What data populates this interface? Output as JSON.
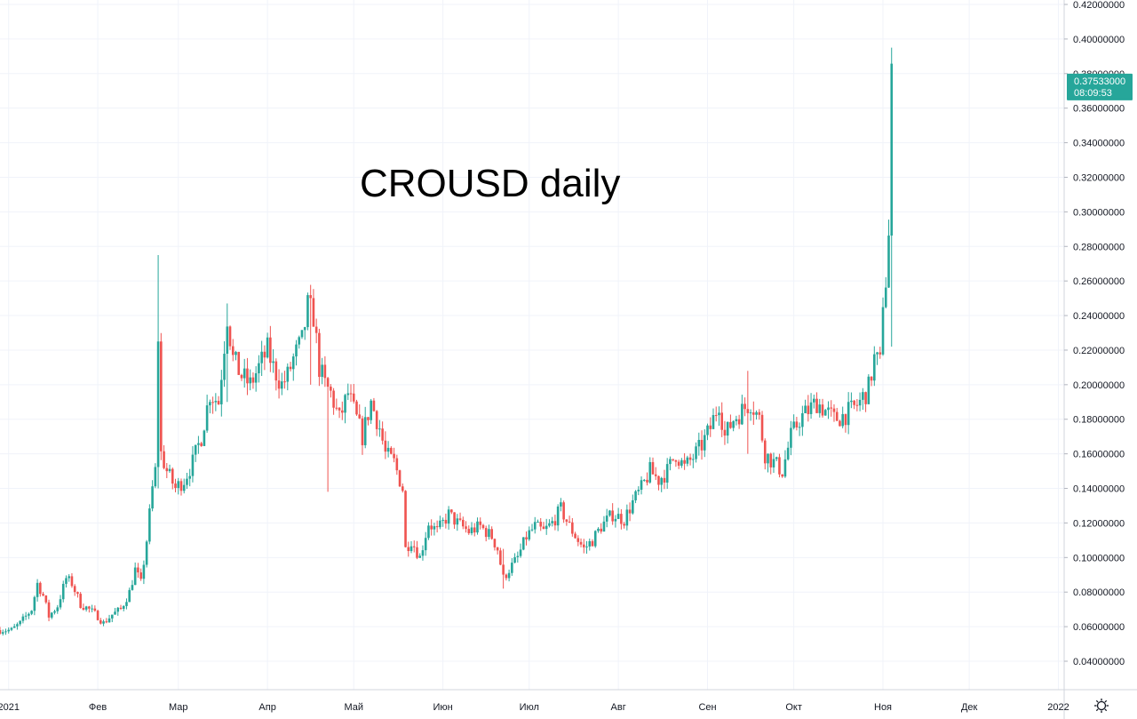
{
  "chart_data": {
    "type": "candlestick",
    "title": "CROUSD daily",
    "price_axis": {
      "ticks": [
        "0.04000000",
        "0.06000000",
        "0.08000000",
        "0.10000000",
        "0.12000000",
        "0.14000000",
        "0.16000000",
        "0.18000000",
        "0.20000000",
        "0.22000000",
        "0.24000000",
        "0.26000000",
        "0.28000000",
        "0.30000000",
        "0.32000000",
        "0.34000000",
        "0.36000000",
        "0.38000000",
        "0.40000000",
        "0.42000000"
      ],
      "range": [
        0.03,
        0.42
      ],
      "side": "right"
    },
    "time_axis": {
      "ticks": [
        {
          "label": "2021",
          "date": "2021-01-01"
        },
        {
          "label": "Фев",
          "date": "2021-02-01"
        },
        {
          "label": "Мар",
          "date": "2021-03-01"
        },
        {
          "label": "Апр",
          "date": "2021-04-01"
        },
        {
          "label": "Май",
          "date": "2021-05-01"
        },
        {
          "label": "Июн",
          "date": "2021-06-01"
        },
        {
          "label": "Июл",
          "date": "2021-07-01"
        },
        {
          "label": "Авг",
          "date": "2021-08-01"
        },
        {
          "label": "Сен",
          "date": "2021-09-01"
        },
        {
          "label": "Окт",
          "date": "2021-10-01"
        },
        {
          "label": "Ноя",
          "date": "2021-11-01"
        },
        {
          "label": "Дек",
          "date": "2021-12-01"
        },
        {
          "label": "2022",
          "date": "2022-01-01"
        }
      ],
      "range": [
        "2020-12-29",
        "2022-01-03"
      ]
    },
    "grid": true,
    "last_price": {
      "value": "0.37533000",
      "countdown": "08:09:53",
      "price": 0.37533
    },
    "colors": {
      "up": "#26a69a",
      "down": "#ef5350",
      "grid": "#f0f3fa",
      "label_bg": "#26a69a"
    },
    "close_path": [
      [
        "2020-12-29",
        0.058
      ],
      [
        "2021-01-02",
        0.058
      ],
      [
        "2021-01-05",
        0.062
      ],
      [
        "2021-01-09",
        0.07
      ],
      [
        "2021-01-11",
        0.085
      ],
      [
        "2021-01-13",
        0.078
      ],
      [
        "2021-01-15",
        0.066
      ],
      [
        "2021-01-18",
        0.072
      ],
      [
        "2021-01-21",
        0.088
      ],
      [
        "2021-01-23",
        0.085
      ],
      [
        "2021-01-26",
        0.073
      ],
      [
        "2021-01-29",
        0.07
      ],
      [
        "2021-02-01",
        0.066
      ],
      [
        "2021-02-03",
        0.062
      ],
      [
        "2021-02-06",
        0.067
      ],
      [
        "2021-02-09",
        0.07
      ],
      [
        "2021-02-12",
        0.08
      ],
      [
        "2021-02-14",
        0.093
      ],
      [
        "2021-02-16",
        0.085
      ],
      [
        "2021-02-18",
        0.11
      ],
      [
        "2021-02-20",
        0.14
      ],
      [
        "2021-02-21",
        0.15
      ],
      [
        "2021-02-22",
        0.228
      ],
      [
        "2021-02-23",
        0.16
      ],
      [
        "2021-02-25",
        0.15
      ],
      [
        "2021-02-28",
        0.14
      ],
      [
        "2021-03-03",
        0.145
      ],
      [
        "2021-03-06",
        0.155
      ],
      [
        "2021-03-09",
        0.17
      ],
      [
        "2021-03-12",
        0.195
      ],
      [
        "2021-03-15",
        0.19
      ],
      [
        "2021-03-18",
        0.24
      ],
      [
        "2021-03-20",
        0.215
      ],
      [
        "2021-03-23",
        0.205
      ],
      [
        "2021-03-26",
        0.2
      ],
      [
        "2021-03-29",
        0.21
      ],
      [
        "2021-04-01",
        0.22
      ],
      [
        "2021-04-03",
        0.21
      ],
      [
        "2021-04-06",
        0.2
      ],
      [
        "2021-04-08",
        0.205
      ],
      [
        "2021-04-10",
        0.215
      ],
      [
        "2021-04-13",
        0.225
      ],
      [
        "2021-04-15",
        0.245
      ],
      [
        "2021-04-17",
        0.24
      ],
      [
        "2021-04-19",
        0.21
      ],
      [
        "2021-04-21",
        0.2
      ],
      [
        "2021-04-23",
        0.195
      ],
      [
        "2021-04-26",
        0.18
      ],
      [
        "2021-04-29",
        0.195
      ],
      [
        "2021-05-01",
        0.185
      ],
      [
        "2021-05-04",
        0.17
      ],
      [
        "2021-05-07",
        0.19
      ],
      [
        "2021-05-10",
        0.175
      ],
      [
        "2021-05-12",
        0.16
      ],
      [
        "2021-05-15",
        0.155
      ],
      [
        "2021-05-18",
        0.14
      ],
      [
        "2021-05-19",
        0.105
      ],
      [
        "2021-05-21",
        0.11
      ],
      [
        "2021-05-24",
        0.1
      ],
      [
        "2021-05-27",
        0.12
      ],
      [
        "2021-05-30",
        0.115
      ],
      [
        "2021-06-03",
        0.125
      ],
      [
        "2021-06-06",
        0.12
      ],
      [
        "2021-06-10",
        0.115
      ],
      [
        "2021-06-14",
        0.118
      ],
      [
        "2021-06-18",
        0.112
      ],
      [
        "2021-06-20",
        0.105
      ],
      [
        "2021-06-22",
        0.088
      ],
      [
        "2021-06-24",
        0.093
      ],
      [
        "2021-06-27",
        0.1
      ],
      [
        "2021-06-30",
        0.112
      ],
      [
        "2021-07-03",
        0.118
      ],
      [
        "2021-07-06",
        0.115
      ],
      [
        "2021-07-09",
        0.12
      ],
      [
        "2021-07-12",
        0.128
      ],
      [
        "2021-07-15",
        0.118
      ],
      [
        "2021-07-18",
        0.11
      ],
      [
        "2021-07-20",
        0.105
      ],
      [
        "2021-07-23",
        0.11
      ],
      [
        "2021-07-26",
        0.118
      ],
      [
        "2021-07-30",
        0.125
      ],
      [
        "2021-08-03",
        0.122
      ],
      [
        "2021-08-06",
        0.132
      ],
      [
        "2021-08-09",
        0.14
      ],
      [
        "2021-08-12",
        0.15
      ],
      [
        "2021-08-15",
        0.145
      ],
      [
        "2021-08-18",
        0.15
      ],
      [
        "2021-08-21",
        0.16
      ],
      [
        "2021-08-24",
        0.152
      ],
      [
        "2021-08-27",
        0.158
      ],
      [
        "2021-08-30",
        0.165
      ],
      [
        "2021-09-02",
        0.175
      ],
      [
        "2021-09-05",
        0.19
      ],
      [
        "2021-09-07",
        0.17
      ],
      [
        "2021-09-10",
        0.18
      ],
      [
        "2021-09-13",
        0.185
      ],
      [
        "2021-09-16",
        0.19
      ],
      [
        "2021-09-19",
        0.18
      ],
      [
        "2021-09-21",
        0.16
      ],
      [
        "2021-09-24",
        0.155
      ],
      [
        "2021-09-27",
        0.15
      ],
      [
        "2021-09-30",
        0.17
      ],
      [
        "2021-10-03",
        0.18
      ],
      [
        "2021-10-06",
        0.185
      ],
      [
        "2021-10-09",
        0.19
      ],
      [
        "2021-10-12",
        0.185
      ],
      [
        "2021-10-15",
        0.18
      ],
      [
        "2021-10-18",
        0.182
      ],
      [
        "2021-10-21",
        0.185
      ],
      [
        "2021-10-24",
        0.19
      ],
      [
        "2021-10-27",
        0.198
      ],
      [
        "2021-10-29",
        0.215
      ],
      [
        "2021-10-31",
        0.212
      ],
      [
        "2021-11-01",
        0.25
      ],
      [
        "2021-11-02",
        0.26
      ],
      [
        "2021-11-03",
        0.285
      ],
      [
        "2021-11-04",
        0.375
      ]
    ],
    "highlight_wicks": [
      {
        "date": "2021-02-22",
        "high": 0.275,
        "low": 0.14
      },
      {
        "date": "2021-03-18",
        "high": 0.247,
        "low": 0.19
      },
      {
        "date": "2021-04-16",
        "high": 0.25,
        "low": 0.2
      },
      {
        "date": "2021-04-22",
        "high": 0.2,
        "low": 0.138
      },
      {
        "date": "2021-06-22",
        "high": 0.105,
        "low": 0.082
      },
      {
        "date": "2021-09-15",
        "high": 0.208,
        "low": 0.16
      },
      {
        "date": "2021-11-04",
        "high": 0.395,
        "low": 0.222
      }
    ]
  },
  "ui": {
    "settings_icon": "gear-icon"
  }
}
